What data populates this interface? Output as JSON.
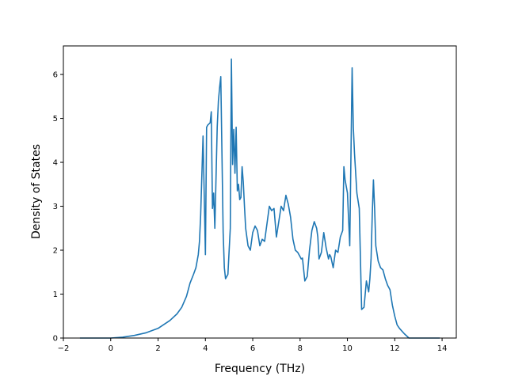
{
  "chart_data": {
    "type": "line",
    "title": "",
    "xlabel": "Frequency (THz)",
    "ylabel": "Density of States",
    "xlim": [
      -2,
      14.6
    ],
    "ylim": [
      0,
      6.65
    ],
    "xticks": [
      -2,
      0,
      2,
      4,
      6,
      8,
      10,
      12,
      14
    ],
    "xtick_labels": [
      "−2",
      "0",
      "2",
      "4",
      "6",
      "8",
      "10",
      "12",
      "14"
    ],
    "yticks": [
      0,
      1,
      2,
      3,
      4,
      5,
      6
    ],
    "ytick_labels": [
      "0",
      "1",
      "2",
      "3",
      "4",
      "5",
      "6"
    ],
    "grid": false,
    "legend": "none",
    "series": [
      {
        "color": "#1f77b4",
        "x": [
          -1.3,
          0,
          0.5,
          1.0,
          1.5,
          2.0,
          2.5,
          2.8,
          3.0,
          3.2,
          3.35,
          3.5,
          3.6,
          3.7,
          3.75,
          3.8,
          3.9,
          4.0,
          4.05,
          4.1,
          4.2,
          4.25,
          4.3,
          4.35,
          4.4,
          4.5,
          4.55,
          4.6,
          4.65,
          4.75,
          4.8,
          4.85,
          4.95,
          5.05,
          5.1,
          5.15,
          5.2,
          5.25,
          5.3,
          5.35,
          5.4,
          5.45,
          5.5,
          5.55,
          5.6,
          5.65,
          5.7,
          5.8,
          5.9,
          6.0,
          6.1,
          6.2,
          6.3,
          6.4,
          6.5,
          6.6,
          6.7,
          6.8,
          6.9,
          7.0,
          7.1,
          7.2,
          7.3,
          7.4,
          7.5,
          7.6,
          7.7,
          7.8,
          7.9,
          8.0,
          8.05,
          8.1,
          8.2,
          8.3,
          8.4,
          8.5,
          8.6,
          8.7,
          8.75,
          8.8,
          8.9,
          9.0,
          9.1,
          9.2,
          9.25,
          9.3,
          9.4,
          9.5,
          9.6,
          9.7,
          9.8,
          9.85,
          9.9,
          10.0,
          10.1,
          10.2,
          10.25,
          10.3,
          10.4,
          10.5,
          10.6,
          10.7,
          10.8,
          10.9,
          10.95,
          11.0,
          11.05,
          11.1,
          11.15,
          11.2,
          11.3,
          11.4,
          11.5,
          11.6,
          11.7,
          11.8,
          11.9,
          12.0,
          12.1,
          12.2,
          12.4,
          12.6,
          13.0,
          13.9
        ],
        "y": [
          0,
          0,
          0.02,
          0.06,
          0.12,
          0.22,
          0.4,
          0.55,
          0.7,
          0.95,
          1.25,
          1.45,
          1.6,
          1.9,
          2.2,
          2.8,
          4.6,
          1.9,
          4.8,
          4.85,
          4.9,
          5.15,
          2.95,
          3.3,
          2.5,
          4.8,
          5.4,
          5.7,
          5.95,
          2.4,
          1.6,
          1.35,
          1.45,
          2.5,
          6.35,
          3.95,
          4.75,
          3.75,
          4.8,
          3.35,
          3.5,
          3.15,
          3.2,
          3.9,
          3.55,
          3.0,
          2.5,
          2.1,
          2.0,
          2.4,
          2.55,
          2.45,
          2.1,
          2.25,
          2.2,
          2.6,
          3.0,
          2.9,
          2.95,
          2.3,
          2.65,
          3.0,
          2.9,
          3.25,
          3.05,
          2.75,
          2.25,
          2.0,
          1.95,
          1.85,
          1.8,
          1.82,
          1.3,
          1.4,
          2.0,
          2.45,
          2.65,
          2.5,
          2.3,
          1.8,
          1.95,
          2.4,
          2.05,
          1.8,
          1.9,
          1.85,
          1.6,
          2.0,
          1.95,
          2.3,
          2.45,
          3.9,
          3.6,
          3.3,
          2.1,
          6.15,
          4.8,
          4.2,
          3.3,
          2.95,
          0.65,
          0.7,
          1.3,
          1.05,
          1.35,
          1.8,
          2.8,
          3.6,
          2.95,
          2.1,
          1.75,
          1.6,
          1.55,
          1.35,
          1.2,
          1.1,
          0.75,
          0.5,
          0.3,
          0.22,
          0.1,
          0.0,
          0.0,
          0.0
        ]
      }
    ]
  }
}
